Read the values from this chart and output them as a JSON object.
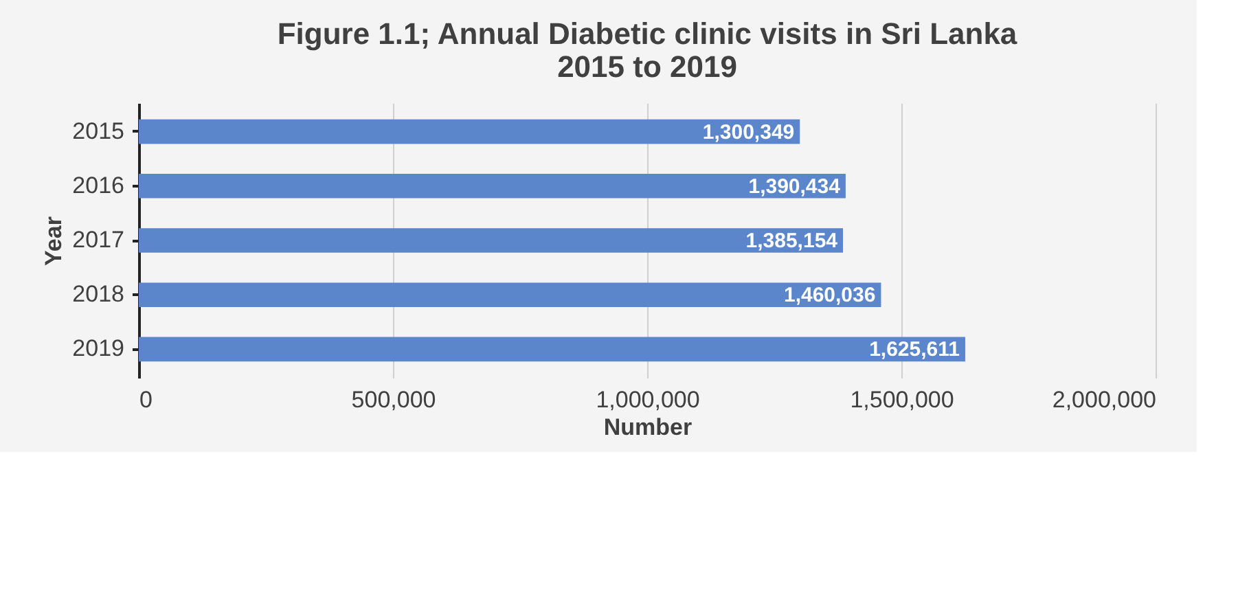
{
  "chart_data": {
    "type": "bar",
    "orientation": "horizontal",
    "title": [
      "Figure 1.1; Annual Diabetic clinic visits  in Sri Lanka",
      "2015 to 2019"
    ],
    "xlabel": "Number",
    "ylabel": "Year",
    "categories": [
      "2015",
      "2016",
      "2017",
      "2018",
      "2019"
    ],
    "values": [
      1300349,
      1390434,
      1385154,
      1460036,
      1625611
    ],
    "value_labels": [
      "1,300,349",
      "1,390,434",
      "1,385,154",
      "1,460,036",
      "1,625,611"
    ],
    "color": "#5b86cc",
    "xlim": [
      0,
      2000000
    ],
    "xticks": [
      0,
      {
        "value": 500000,
        "label": "500,000"
      },
      {
        "value": 1000000,
        "label": "1,000,000"
      },
      {
        "value": 1500000,
        "label": "1,500,000"
      },
      {
        "value": 2000000,
        "label": "2,000,000"
      }
    ],
    "grid": "x"
  }
}
